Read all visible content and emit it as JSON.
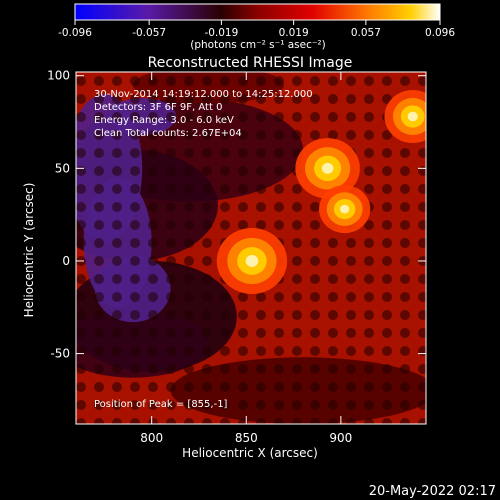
{
  "chart_data": {
    "type": "heatmap",
    "title": "Reconstructed RHESSI Image",
    "xlabel": "Heliocentric X (arcsec)",
    "ylabel": "Heliocentric Y (arcsec)",
    "xlim": [
      760,
      945
    ],
    "ylim": [
      -88,
      102
    ],
    "xticks": [
      800,
      850,
      900
    ],
    "yticks": [
      -50,
      0,
      50,
      100
    ],
    "colorbar": {
      "ticks": [
        "-0.096",
        "-0.057",
        "-0.019",
        "0.019",
        "0.057",
        "0.096"
      ],
      "range": [
        -0.096,
        0.096
      ],
      "unit_label": "(photons cm⁻² s⁻¹ asec⁻²)"
    },
    "info": [
      "30-Nov-2014 14:19:12.000 to 14:25:12.000",
      "Detectors: 3F 6F 9F, Att 0",
      "Energy Range: 3.0 - 6.0 keV",
      "Clean     Total counts: 2.67E+04"
    ],
    "peak_label": "Position of Peak = [855,-1]",
    "sources": [
      {
        "x": 853,
        "y": 0,
        "value": 0.096
      },
      {
        "x": 893,
        "y": 50,
        "value": 0.085
      },
      {
        "x": 938,
        "y": 78,
        "value": 0.07
      },
      {
        "x": 902,
        "y": 28,
        "value": 0.06
      }
    ]
  },
  "footer": {
    "timestamp": "20-May-2022 02:17"
  }
}
